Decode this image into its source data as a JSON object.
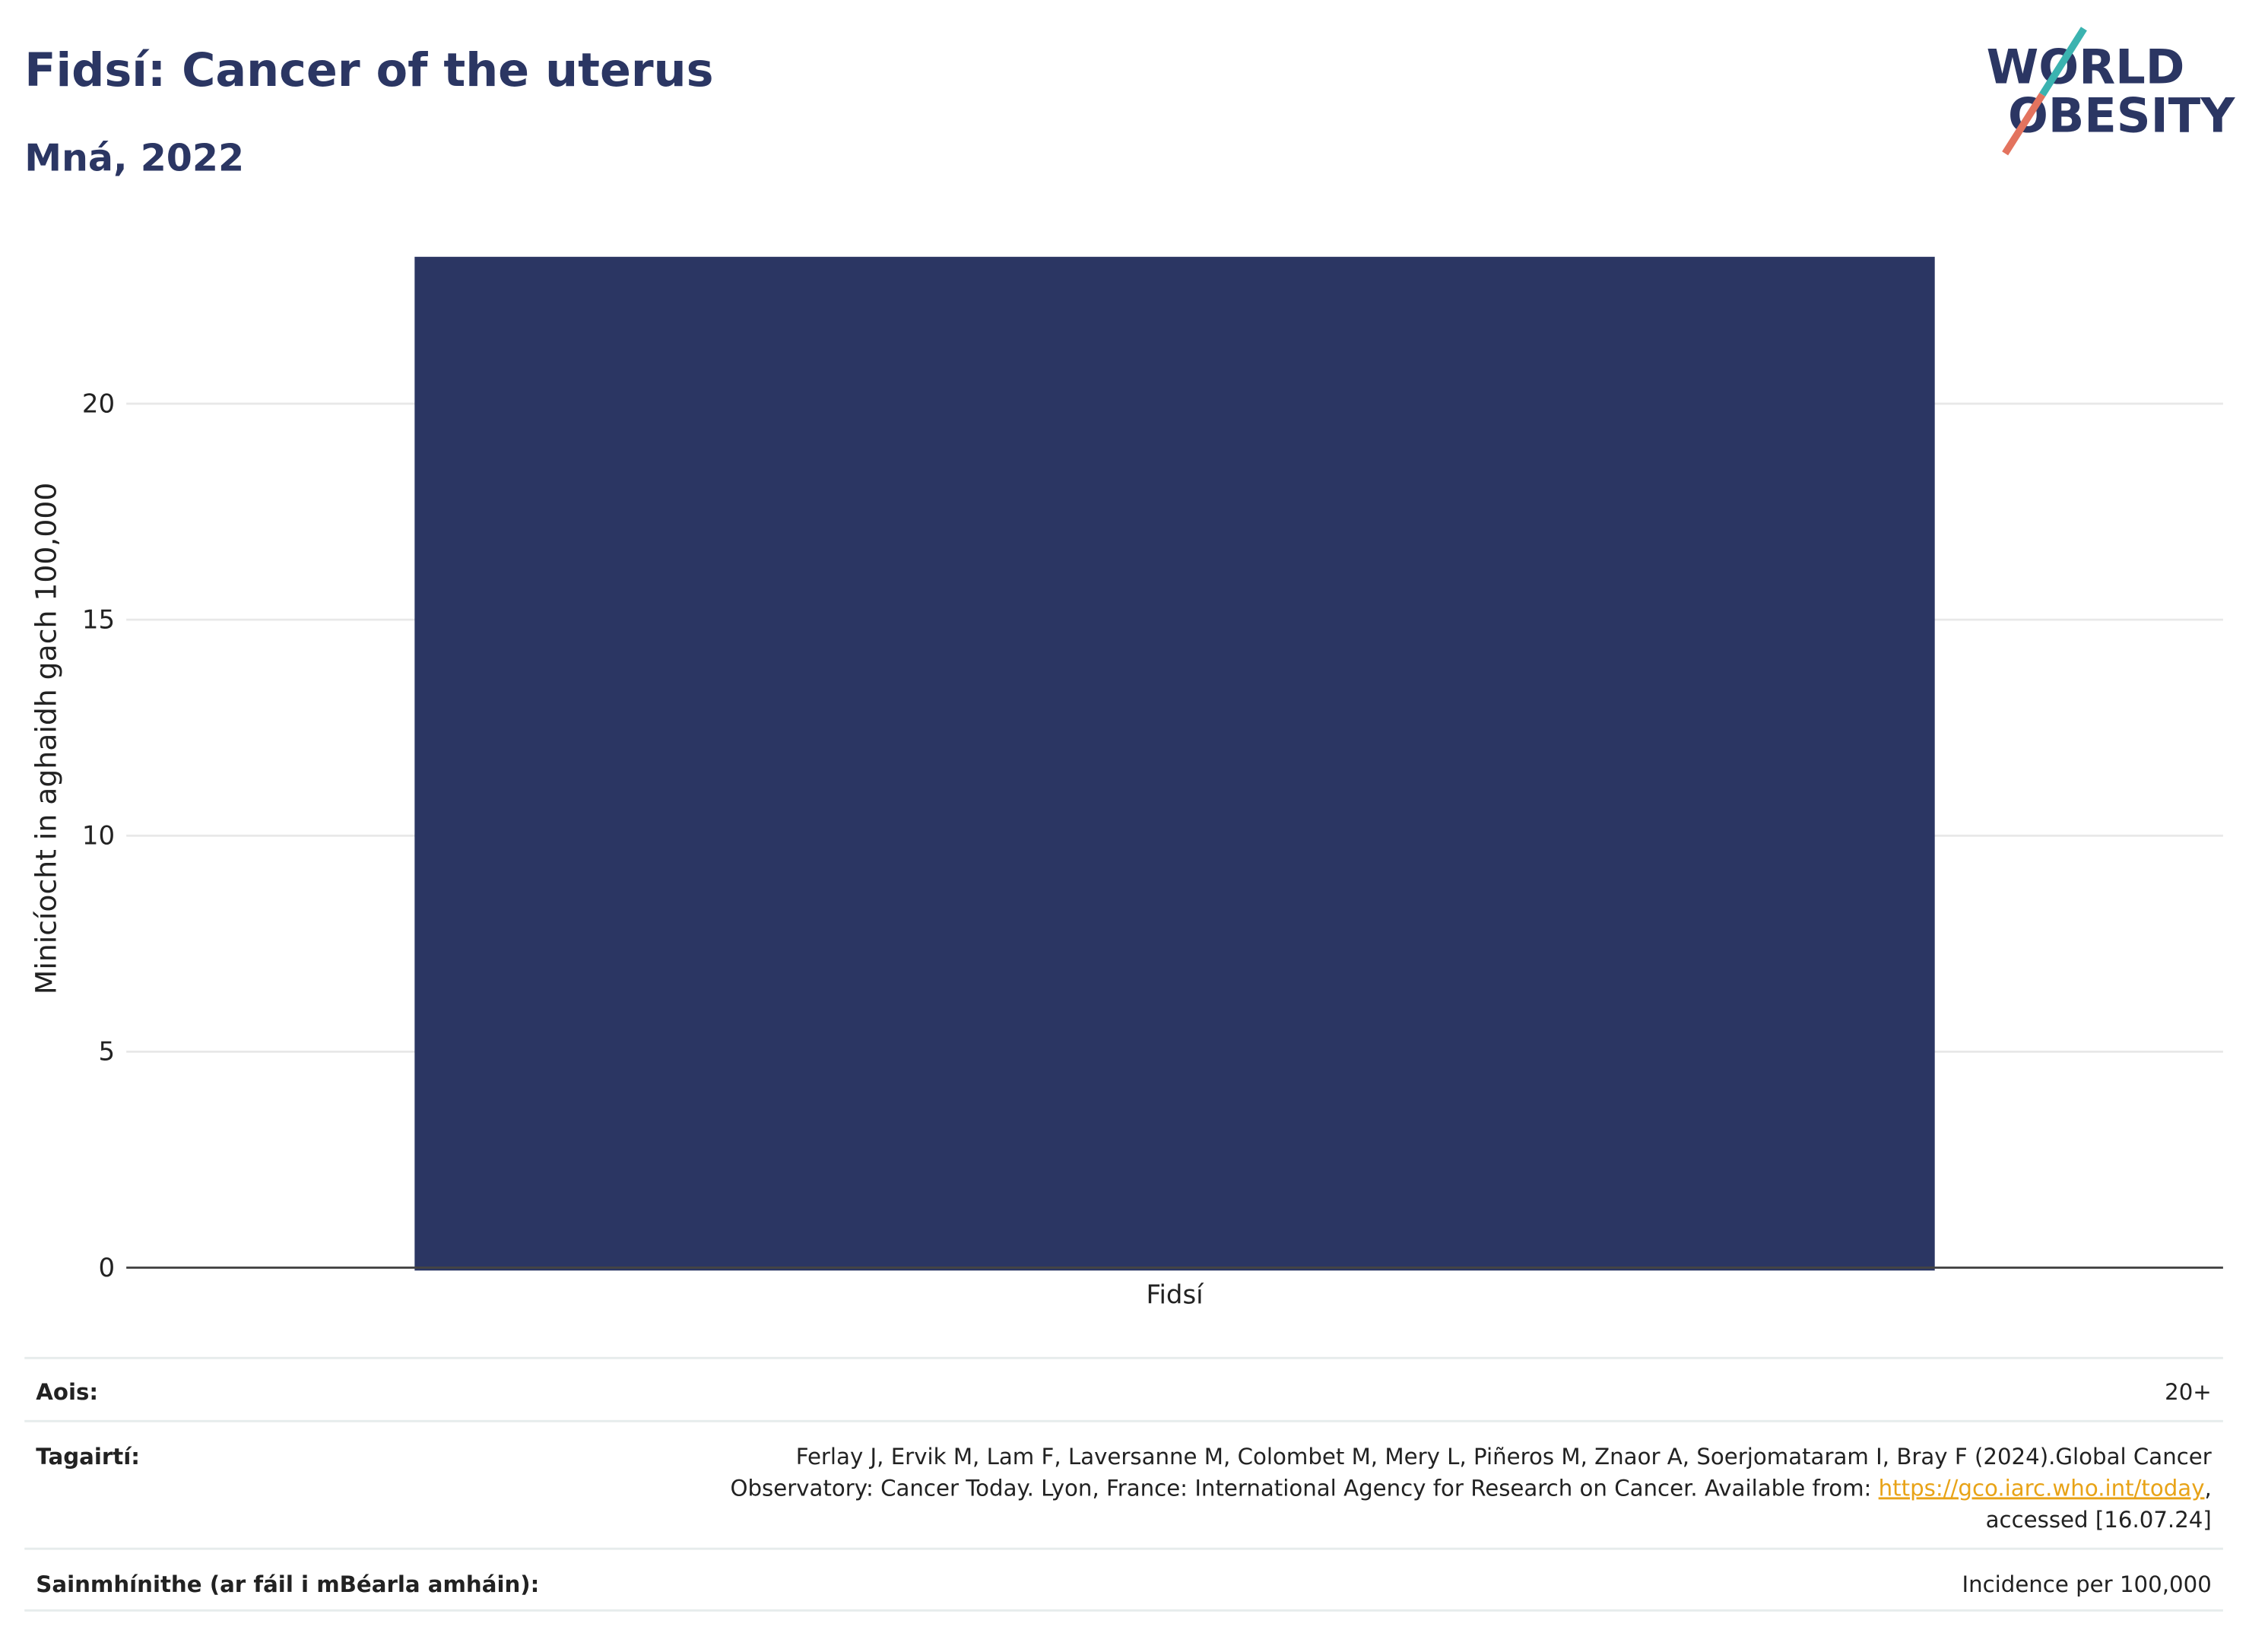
{
  "header": {
    "title": "Fidsí: Cancer of the uterus",
    "subtitle": "Mná, 2022",
    "logo": [
      "WORLD",
      "OBESITY"
    ]
  },
  "chart_data": {
    "type": "bar",
    "categories": [
      "Fidsí"
    ],
    "values": [
      23.4
    ],
    "color": "#2b3663",
    "ylabel": "Minicíocht in aghaidh gach 100,000",
    "ylim": [
      0,
      24
    ],
    "yticks": [
      0,
      5,
      10,
      15,
      20
    ],
    "grid": true
  },
  "footer": {
    "rows": [
      {
        "label": "Aois:",
        "value": [
          "20+"
        ]
      },
      {
        "label": "Tagairtí:",
        "value": [
          "Ferlay J, Ervik M, Lam F, Laversanne M, Colombet M, Mery L, Piñeros M, Znaor A, Soerjomataram I, Bray F (2024).Global Cancer",
          "Observatory: Cancer Today. Lyon, France: International Agency for Research on Cancer. Available from: ",
          "https://gco.iarc.who.int/today",
          ",",
          "accessed [16.07.24]"
        ]
      },
      {
        "label": "Sainmhínithe (ar fáil i mBéarla amháin):",
        "value": [
          "Incidence per 100,000"
        ]
      }
    ]
  }
}
